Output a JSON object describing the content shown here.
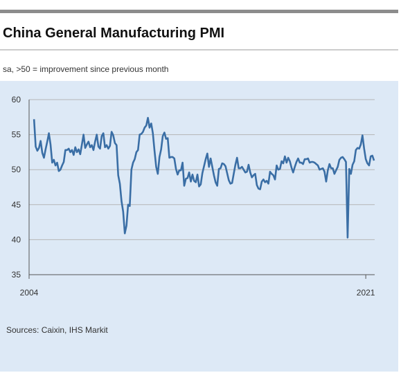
{
  "chart_data": {
    "type": "line",
    "title": "China General Manufacturing PMI",
    "subtitle": "sa, >50 = improvement since previous month",
    "source": "Sources: Caixin, IHS Markit",
    "color": "#3a6ea5",
    "grid": true,
    "ylim": [
      35,
      60
    ],
    "yticks": [
      35,
      40,
      45,
      50,
      55,
      60
    ],
    "xlim": [
      2004,
      2021.45
    ],
    "xticks": [
      2004,
      2021
    ],
    "x": [
      2004.25,
      2004.333,
      2004.417,
      2004.5,
      2004.583,
      2004.667,
      2004.75,
      2004.833,
      2004.917,
      2005,
      2005.083,
      2005.167,
      2005.25,
      2005.333,
      2005.417,
      2005.5,
      2005.583,
      2005.667,
      2005.75,
      2005.833,
      2005.917,
      2006,
      2006.083,
      2006.167,
      2006.25,
      2006.333,
      2006.417,
      2006.5,
      2006.583,
      2006.667,
      2006.75,
      2006.833,
      2006.917,
      2007,
      2007.083,
      2007.167,
      2007.25,
      2007.333,
      2007.417,
      2007.5,
      2007.583,
      2007.667,
      2007.75,
      2007.833,
      2007.917,
      2008,
      2008.083,
      2008.167,
      2008.25,
      2008.333,
      2008.417,
      2008.5,
      2008.583,
      2008.667,
      2008.75,
      2008.833,
      2008.917,
      2009,
      2009.083,
      2009.167,
      2009.25,
      2009.333,
      2009.417,
      2009.5,
      2009.583,
      2009.667,
      2009.75,
      2009.833,
      2009.917,
      2010,
      2010.083,
      2010.167,
      2010.25,
      2010.333,
      2010.417,
      2010.5,
      2010.583,
      2010.667,
      2010.75,
      2010.833,
      2010.917,
      2011,
      2011.083,
      2011.167,
      2011.25,
      2011.333,
      2011.417,
      2011.5,
      2011.583,
      2011.667,
      2011.75,
      2011.833,
      2011.917,
      2012,
      2012.083,
      2012.167,
      2012.25,
      2012.333,
      2012.417,
      2012.5,
      2012.583,
      2012.667,
      2012.75,
      2012.833,
      2012.917,
      2013,
      2013.083,
      2013.167,
      2013.25,
      2013.333,
      2013.417,
      2013.5,
      2013.583,
      2013.667,
      2013.75,
      2013.833,
      2013.917,
      2014,
      2014.083,
      2014.167,
      2014.25,
      2014.333,
      2014.417,
      2014.5,
      2014.583,
      2014.667,
      2014.75,
      2014.833,
      2014.917,
      2015,
      2015.083,
      2015.167,
      2015.25,
      2015.333,
      2015.417,
      2015.5,
      2015.583,
      2015.667,
      2015.75,
      2015.833,
      2015.917,
      2016,
      2016.083,
      2016.167,
      2016.25,
      2016.333,
      2016.417,
      2016.5,
      2016.583,
      2016.667,
      2016.75,
      2016.833,
      2016.917,
      2017,
      2017.083,
      2017.167,
      2017.25,
      2017.333,
      2017.417,
      2017.5,
      2017.583,
      2017.667,
      2017.75,
      2017.833,
      2017.917,
      2018,
      2018.083,
      2018.167,
      2018.25,
      2018.333,
      2018.417,
      2018.5,
      2018.583,
      2018.667,
      2018.75,
      2018.833,
      2018.917,
      2019,
      2019.083,
      2019.167,
      2019.25,
      2019.333,
      2019.417,
      2019.5,
      2019.583,
      2019.667,
      2019.75,
      2019.833,
      2019.917,
      2020,
      2020.083,
      2020.167,
      2020.25,
      2020.333,
      2020.417,
      2020.5,
      2020.583,
      2020.667,
      2020.75,
      2020.833,
      2020.917,
      2021,
      2021.083,
      2021.167,
      2021.25,
      2021.333,
      2021.417
    ],
    "values": [
      57.2,
      53.3,
      52.7,
      53.1,
      54.1,
      52.4,
      51.7,
      52.9,
      54.0,
      55.2,
      53.6,
      51.0,
      51.4,
      50.6,
      51.0,
      49.8,
      50.0,
      50.6,
      51.1,
      52.8,
      52.8,
      53.0,
      52.5,
      52.8,
      52.1,
      53.2,
      52.5,
      52.9,
      52.2,
      53.6,
      55.0,
      53.1,
      53.6,
      54.0,
      53.2,
      53.5,
      52.8,
      54.0,
      55.0,
      53.3,
      53.0,
      54.8,
      55.2,
      53.2,
      53.5,
      53.0,
      53.4,
      55.4,
      54.9,
      53.8,
      53.5,
      49.2,
      48.0,
      45.5,
      44.0,
      40.9,
      42.0,
      45.0,
      44.8,
      50.0,
      51.0,
      51.5,
      52.5,
      52.8,
      55.0,
      55.1,
      55.4,
      56.0,
      56.3,
      57.4,
      56.0,
      56.6,
      55.2,
      52.7,
      50.4,
      49.4,
      51.8,
      52.9,
      54.8,
      55.3,
      54.4,
      54.5,
      51.7,
      51.8,
      51.8,
      51.6,
      50.1,
      49.3,
      49.9,
      49.9,
      51.0,
      47.7,
      48.7,
      48.8,
      49.6,
      48.3,
      49.3,
      48.4,
      48.2,
      49.3,
      47.6,
      47.9,
      49.5,
      50.5,
      51.5,
      52.3,
      50.4,
      51.6,
      50.4,
      49.2,
      48.2,
      47.7,
      50.1,
      50.2,
      50.9,
      50.8,
      50.5,
      49.5,
      48.5,
      48.0,
      48.1,
      49.4,
      50.7,
      51.7,
      50.2,
      50.2,
      50.4,
      50.0,
      49.6,
      49.7,
      50.7,
      49.6,
      48.9,
      49.2,
      49.4,
      47.8,
      47.3,
      47.2,
      48.3,
      48.6,
      48.2,
      48.4,
      48.0,
      49.7,
      49.4,
      49.2,
      48.6,
      50.6,
      50.0,
      50.1,
      51.2,
      50.9,
      51.9,
      51.0,
      51.7,
      51.2,
      50.3,
      49.6,
      50.4,
      51.1,
      51.6,
      51.0,
      51.0,
      50.8,
      51.5,
      51.5,
      51.6,
      51.0,
      51.1,
      51.1,
      51.0,
      50.8,
      50.6,
      50.0,
      50.1,
      50.2,
      49.7,
      48.3,
      49.9,
      50.8,
      50.2,
      50.2,
      49.4,
      49.9,
      50.4,
      51.4,
      51.7,
      51.8,
      51.5,
      51.1,
      40.3,
      50.1,
      49.4,
      50.7,
      51.2,
      52.8,
      53.1,
      53.0,
      53.6,
      54.9,
      53.0,
      51.5,
      50.9,
      50.6,
      51.9,
      52.0,
      51.3
    ]
  }
}
